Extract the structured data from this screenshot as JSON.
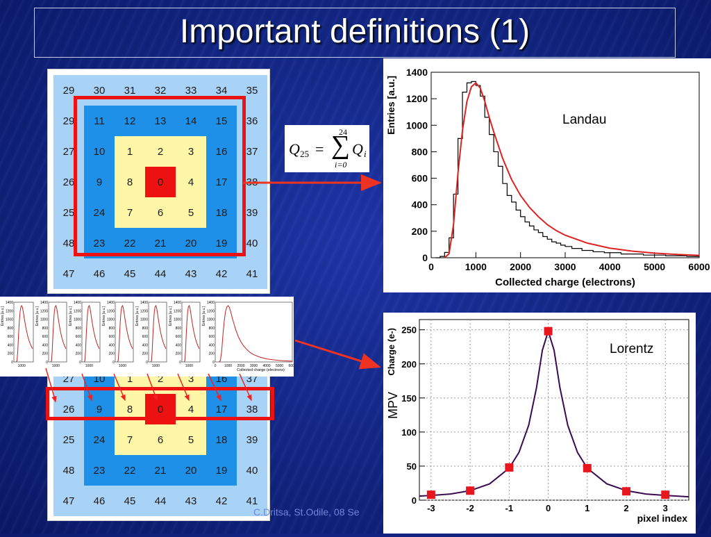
{
  "slide": {
    "title": "Important definitions (1)",
    "footer": "C.Dritsa, St.Odile,  08 Se"
  },
  "colors": {
    "light_blue": "#a9d2f7",
    "mid_blue": "#1e90e8",
    "yellow": "#fff7a8",
    "red": "#ee1111"
  },
  "pixel_grid_top": [
    [
      "29",
      "30",
      "31",
      "32",
      "33",
      "34",
      "35"
    ],
    [
      "29",
      "11",
      "12",
      "13",
      "14",
      "15",
      "36"
    ],
    [
      "27",
      "10",
      "1",
      "2",
      "3",
      "16",
      "37"
    ],
    [
      "26",
      "9",
      "8",
      "0",
      "4",
      "17",
      "38"
    ],
    [
      "25",
      "24",
      "7",
      "6",
      "5",
      "18",
      "39"
    ],
    [
      "48",
      "23",
      "22",
      "21",
      "20",
      "19",
      "40"
    ],
    [
      "47",
      "46",
      "45",
      "44",
      "43",
      "42",
      "41"
    ]
  ],
  "pixel_grid_bottom_visible": [
    [
      "27",
      "10",
      "1",
      "2",
      "3",
      "16",
      "37"
    ],
    [
      "26",
      "9",
      "8",
      "0",
      "4",
      "17",
      "38"
    ],
    [
      "25",
      "24",
      "7",
      "6",
      "5",
      "18",
      "39"
    ],
    [
      "48",
      "23",
      "22",
      "21",
      "20",
      "19",
      "40"
    ],
    [
      "47",
      "46",
      "45",
      "44",
      "43",
      "42",
      "41"
    ]
  ],
  "color_map": [
    [
      "lb",
      "lb",
      "lb",
      "lb",
      "lb",
      "lb",
      "lb"
    ],
    [
      "lb",
      "mb",
      "mb",
      "mb",
      "mb",
      "mb",
      "lb"
    ],
    [
      "lb",
      "mb",
      "y",
      "y",
      "y",
      "mb",
      "lb"
    ],
    [
      "lb",
      "mb",
      "y",
      "r",
      "y",
      "mb",
      "lb"
    ],
    [
      "lb",
      "mb",
      "y",
      "y",
      "y",
      "mb",
      "lb"
    ],
    [
      "lb",
      "mb",
      "mb",
      "mb",
      "mb",
      "mb",
      "lb"
    ],
    [
      "lb",
      "lb",
      "lb",
      "lb",
      "lb",
      "lb",
      "lb"
    ]
  ],
  "formula": {
    "lhs": "Q",
    "lhs_sub": "25",
    "eq": "=",
    "upper": "24",
    "lower": "i=0",
    "rhs": "Q",
    "rhs_sub": "i"
  },
  "small_hists": {
    "ylabel": "Entries [a.u.]",
    "y_ticks": [
      "1400",
      "1200",
      "1000",
      "800",
      "600",
      "400",
      "200",
      "0"
    ],
    "x_tick": "1000",
    "big_xlabel": "Collected charge (electrons)",
    "big_x_ticks": [
      "0",
      "1000",
      "2000",
      "3000",
      "4000",
      "5000",
      "6000"
    ]
  },
  "chart_data": [
    {
      "type": "line",
      "title": "",
      "annotation": "Landau",
      "xlabel": "Collected charge (electrons)",
      "ylabel": "Entries [a.u.]",
      "xlim": [
        0,
        6000
      ],
      "ylim": [
        0,
        1400
      ],
      "x_ticks": [
        "0",
        "1000",
        "2000",
        "3000",
        "4000",
        "5000",
        "6000"
      ],
      "y_ticks": [
        "0",
        "200",
        "400",
        "600",
        "800",
        "1000",
        "1200",
        "1400"
      ],
      "series": [
        {
          "style": "histogram",
          "x": [
            150,
            250,
            350,
            450,
            550,
            650,
            750,
            850,
            950,
            1050,
            1150,
            1250,
            1350,
            1450,
            1550,
            1650,
            1750,
            1850,
            1950,
            2050,
            2150,
            2250,
            2350,
            2450,
            2550,
            2650,
            2750,
            2850,
            2950,
            3050,
            3250,
            3500,
            3750,
            4000,
            4500,
            5000,
            5500,
            5950
          ],
          "y": [
            0,
            10,
            40,
            150,
            480,
            900,
            1250,
            1320,
            1330,
            1300,
            1220,
            1060,
            930,
            800,
            690,
            560,
            470,
            420,
            360,
            310,
            270,
            240,
            210,
            190,
            160,
            140,
            120,
            110,
            95,
            85,
            70,
            55,
            45,
            38,
            28,
            20,
            15,
            10
          ]
        },
        {
          "style": "fit",
          "x": [
            300,
            400,
            500,
            600,
            700,
            800,
            900,
            1000,
            1100,
            1200,
            1300,
            1400,
            1500,
            1600,
            1800,
            2000,
            2200,
            2400,
            2600,
            2800,
            3000,
            3500,
            4000,
            4500,
            5000,
            5500,
            6000
          ],
          "y": [
            0,
            30,
            250,
            640,
            960,
            1180,
            1290,
            1320,
            1280,
            1180,
            1060,
            950,
            850,
            750,
            590,
            470,
            380,
            310,
            250,
            205,
            170,
            110,
            72,
            50,
            35,
            25,
            18
          ]
        }
      ],
      "grid": false
    },
    {
      "type": "scatter",
      "title": "",
      "annotation": "Lorentz",
      "xlabel": "pixel index",
      "ylabel": "Charge (e-)",
      "side_label": "MPV",
      "xlim": [
        -3.3,
        3.6
      ],
      "ylim": [
        0,
        265
      ],
      "x_ticks": [
        "-3",
        "-2",
        "-1",
        "0",
        "1",
        "2",
        "3"
      ],
      "y_ticks": [
        "0",
        "50",
        "100",
        "150",
        "200",
        "250"
      ],
      "points": {
        "x": [
          -3,
          -2,
          -1,
          0,
          1,
          2,
          3
        ],
        "y": [
          8,
          14,
          48,
          248,
          47,
          13,
          8
        ]
      },
      "curve": {
        "x": [
          -3.3,
          -3,
          -2.5,
          -2,
          -1.5,
          -1,
          -0.75,
          -0.5,
          -0.3,
          -0.15,
          0,
          0.15,
          0.3,
          0.5,
          0.75,
          1,
          1.5,
          2,
          2.5,
          3,
          3.6
        ],
        "y": [
          6,
          7,
          9,
          14,
          24,
          47,
          70,
          110,
          165,
          220,
          248,
          220,
          165,
          110,
          70,
          47,
          24,
          14,
          9,
          7,
          5
        ]
      },
      "grid": true
    }
  ]
}
